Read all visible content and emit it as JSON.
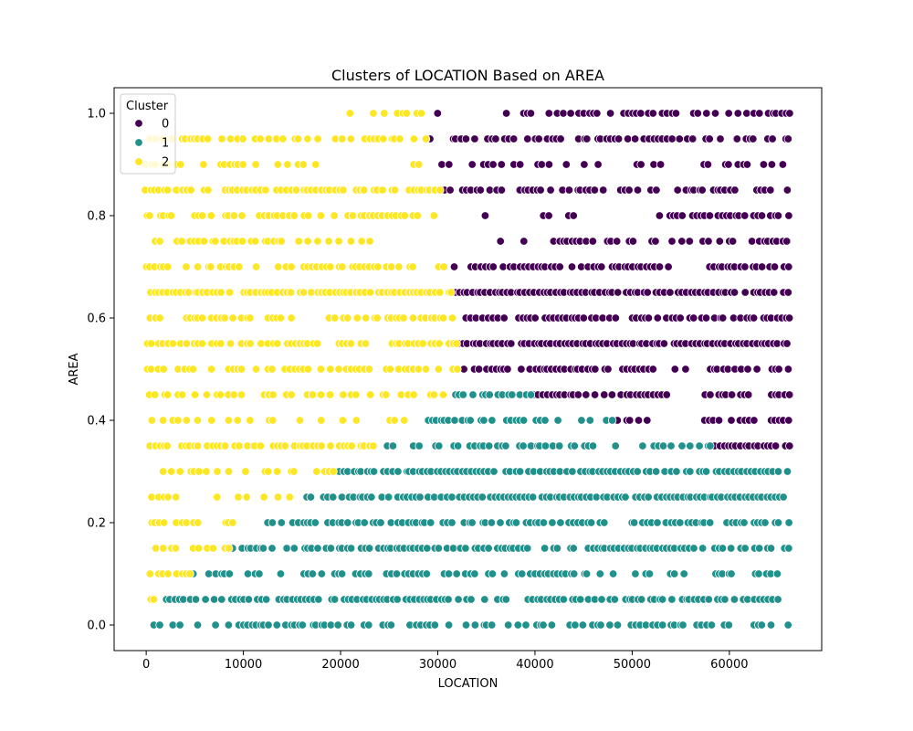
{
  "chart_data": {
    "type": "scatter",
    "title": "Clusters of LOCATION Based on AREA",
    "xlabel": "LOCATION",
    "ylabel": "AREA",
    "xlim": [
      -3300,
      69500
    ],
    "ylim": [
      -0.05,
      1.05
    ],
    "xticks": [
      0,
      10000,
      20000,
      30000,
      40000,
      50000,
      60000
    ],
    "xtick_labels": [
      "0",
      "10000",
      "20000",
      "30000",
      "40000",
      "50000",
      "60000"
    ],
    "yticks": [
      0.0,
      0.2,
      0.4,
      0.6,
      0.8,
      1.0
    ],
    "ytick_labels": [
      "0.0",
      "0.2",
      "0.4",
      "0.6",
      "0.8",
      "1.0"
    ],
    "grid": false,
    "legend": {
      "title": "Cluster",
      "placement": "upper-left",
      "entries": [
        {
          "label": "0",
          "color": "#440154"
        },
        {
          "label": "1",
          "color": "#21918c"
        },
        {
          "label": "2",
          "color": "#fde725"
        }
      ]
    },
    "y_levels": [
      0.0,
      0.05,
      0.1,
      0.15,
      0.2,
      0.25,
      0.3,
      0.35,
      0.4,
      0.45,
      0.5,
      0.55,
      0.6,
      0.65,
      0.7,
      0.75,
      0.8,
      0.85,
      0.9,
      0.95,
      1.0
    ],
    "x_max": 66200,
    "point_spacing": 450,
    "series": [
      {
        "name": "0",
        "color": "#440154",
        "segments": [
          {
            "y": 1.0,
            "x": [
              [
                29500,
                30200
              ],
              [
                35600,
                66200
              ]
            ],
            "density": 0.6
          },
          {
            "y": 0.95,
            "x": [
              [
                28800,
                66200
              ]
            ],
            "density": 0.65
          },
          {
            "y": 0.9,
            "x": [
              [
                30300,
                66200
              ]
            ],
            "density": 0.45
          },
          {
            "y": 0.85,
            "x": [
              [
                30800,
                66200
              ]
            ],
            "density": 0.5
          },
          {
            "y": 0.8,
            "x": [
              [
                35000,
                35500
              ],
              [
                41000,
                41500
              ],
              [
                43500,
                44000
              ],
              [
                52500,
                66200
              ]
            ],
            "density": 0.75
          },
          {
            "y": 0.75,
            "x": [
              [
                35000,
                37000
              ],
              [
                38500,
                39000
              ],
              [
                42000,
                66200
              ]
            ],
            "density": 0.65
          },
          {
            "y": 0.7,
            "x": [
              [
                31200,
                54000
              ],
              [
                57500,
                66200
              ]
            ],
            "density": 0.75
          },
          {
            "y": 0.65,
            "x": [
              [
                31800,
                66200
              ]
            ],
            "density": 0.9
          },
          {
            "y": 0.6,
            "x": [
              [
                32000,
                48500
              ],
              [
                50000,
                66200
              ]
            ],
            "density": 0.75
          },
          {
            "y": 0.55,
            "x": [
              [
                32200,
                66200
              ]
            ],
            "density": 0.95
          },
          {
            "y": 0.5,
            "x": [
              [
                32800,
                52500
              ],
              [
                54500,
                55500
              ],
              [
                57500,
                66200
              ]
            ],
            "density": 0.8
          },
          {
            "y": 0.45,
            "x": [
              [
                39500,
                53800
              ],
              [
                57500,
                66200
              ]
            ],
            "density": 0.75
          },
          {
            "y": 0.4,
            "x": [
              [
                48000,
                52000
              ],
              [
                57500,
                66200
              ]
            ],
            "density": 0.75
          },
          {
            "y": 0.35,
            "x": [
              [
                58500,
                66200
              ]
            ],
            "density": 0.8
          }
        ]
      },
      {
        "name": "1",
        "color": "#21918c",
        "segments": [
          {
            "y": 0.45,
            "x": [
              [
                31800,
                39500
              ]
            ],
            "density": 0.7
          },
          {
            "y": 0.4,
            "x": [
              [
                28500,
                48000
              ]
            ],
            "density": 0.6
          },
          {
            "y": 0.35,
            "x": [
              [
                23500,
                58500
              ]
            ],
            "density": 0.5
          },
          {
            "y": 0.3,
            "x": [
              [
                19500,
                66200
              ]
            ],
            "density": 0.85
          },
          {
            "y": 0.25,
            "x": [
              [
                16500,
                66200
              ]
            ],
            "density": 0.8
          },
          {
            "y": 0.2,
            "x": [
              [
                12500,
                66200
              ]
            ],
            "density": 0.75
          },
          {
            "y": 0.15,
            "x": [
              [
                9000,
                66200
              ]
            ],
            "density": 0.8
          },
          {
            "y": 0.1,
            "x": [
              [
                4500,
                66200
              ]
            ],
            "density": 0.6
          },
          {
            "y": 0.05,
            "x": [
              [
                1500,
                66200
              ]
            ],
            "density": 0.65
          },
          {
            "y": 0.0,
            "x": [
              [
                0,
                66200
              ]
            ],
            "density": 0.55
          }
        ]
      },
      {
        "name": "2",
        "color": "#fde725",
        "segments": [
          {
            "y": 1.0,
            "x": [
              [
                21000,
                29500
              ]
            ],
            "density": 0.5
          },
          {
            "y": 0.95,
            "x": [
              [
                0,
                28800
              ]
            ],
            "density": 0.55
          },
          {
            "y": 0.9,
            "x": [
              [
                0,
                18500
              ],
              [
                27500,
                28000
              ]
            ],
            "density": 0.55
          },
          {
            "y": 0.85,
            "x": [
              [
                0,
                30300
              ]
            ],
            "density": 0.75
          },
          {
            "y": 0.8,
            "x": [
              [
                0,
                30000
              ]
            ],
            "density": 0.65
          },
          {
            "y": 0.75,
            "x": [
              [
                0,
                23500
              ]
            ],
            "density": 0.45
          },
          {
            "y": 0.7,
            "x": [
              [
                0,
                31200
              ]
            ],
            "density": 0.5
          },
          {
            "y": 0.65,
            "x": [
              [
                0,
                31800
              ]
            ],
            "density": 0.85
          },
          {
            "y": 0.6,
            "x": [
              [
                0,
                32000
              ]
            ],
            "density": 0.6
          },
          {
            "y": 0.55,
            "x": [
              [
                0,
                32200
              ]
            ],
            "density": 0.65
          },
          {
            "y": 0.5,
            "x": [
              [
                0,
                32800
              ]
            ],
            "density": 0.55
          },
          {
            "y": 0.45,
            "x": [
              [
                0,
                31000
              ]
            ],
            "density": 0.4
          },
          {
            "y": 0.4,
            "x": [
              [
                0,
                28000
              ]
            ],
            "density": 0.35
          },
          {
            "y": 0.35,
            "x": [
              [
                0,
                23500
              ]
            ],
            "density": 0.75
          },
          {
            "y": 0.3,
            "x": [
              [
                0,
                19500
              ]
            ],
            "density": 0.45
          },
          {
            "y": 0.25,
            "x": [
              [
                0,
                16500
              ]
            ],
            "density": 0.45
          },
          {
            "y": 0.2,
            "x": [
              [
                0,
                12500
              ]
            ],
            "density": 0.45
          },
          {
            "y": 0.15,
            "x": [
              [
                0,
                9000
              ]
            ],
            "density": 0.5
          },
          {
            "y": 0.1,
            "x": [
              [
                0,
                4500
              ]
            ],
            "density": 0.5
          },
          {
            "y": 0.05,
            "x": [
              [
                0,
                1500
              ]
            ],
            "density": 0.4
          }
        ]
      }
    ]
  }
}
